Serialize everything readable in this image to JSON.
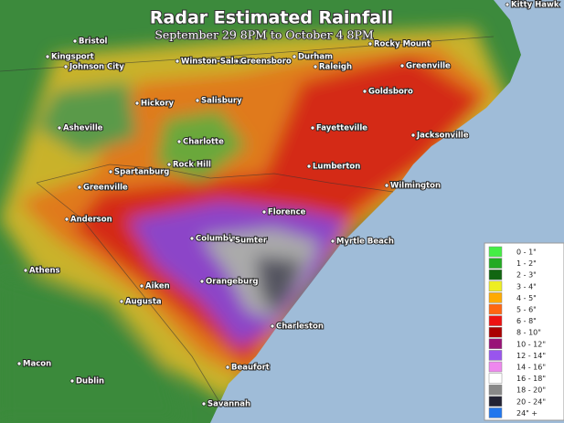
{
  "header": {
    "title": "Radar Estimated Rainfall",
    "subtitle": "September 29 8PM to October 4 8PM"
  },
  "cities": [
    "Kitty Hawk",
    "Bristol",
    "Kingsport",
    "Johnson City",
    "Winston-Salem",
    "Greensboro",
    "Durham",
    "Rocky Mount",
    "Raleigh",
    "Greenville",
    "Goldsboro",
    "Hickory",
    "Salisbury",
    "Asheville",
    "Charlotte",
    "Jacksonville",
    "Fayetteville",
    "Spartanburg",
    "Rock Hill",
    "Lumberton",
    "Greenville",
    "Wilmington",
    "Florence",
    "Anderson",
    "Columbia",
    "Sumter",
    "Myrtle Beach",
    "Athens",
    "Orangeburg",
    "Aiken",
    "Augusta",
    "Charleston",
    "Beaufort",
    "Macon",
    "Dublin",
    "Savannah"
  ],
  "legend": [
    {
      "label": "0 - 1\"",
      "color": "#44ee44"
    },
    {
      "label": "1 - 2\"",
      "color": "#22aa22"
    },
    {
      "label": "2 - 3\"",
      "color": "#116611"
    },
    {
      "label": "3 - 4\"",
      "color": "#eeee22"
    },
    {
      "label": "4 - 5\"",
      "color": "#ffaa00"
    },
    {
      "label": "5 - 6\"",
      "color": "#ff6611"
    },
    {
      "label": "6 - 8\"",
      "color": "#ee1111"
    },
    {
      "label": "8 - 10\"",
      "color": "#aa0000"
    },
    {
      "label": "10 - 12\"",
      "color": "#991177"
    },
    {
      "label": "12 - 14\"",
      "color": "#9955ee"
    },
    {
      "label": "14 - 16\"",
      "color": "#ee88ee"
    },
    {
      "label": "16 - 18\"",
      "color": "#ffffff"
    },
    {
      "label": "18 - 20\"",
      "color": "#888888"
    },
    {
      "label": "20 - 24\"",
      "color": "#222233"
    },
    {
      "label": "24\" +",
      "color": "#2277ee"
    }
  ]
}
